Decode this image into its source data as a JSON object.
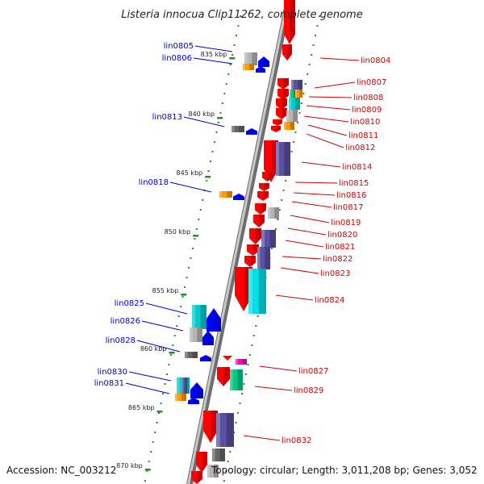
{
  "title": "Listeria innocua Clip11262, complete genome",
  "footer": {
    "accession": "Accession: NC_003212",
    "summary": "Topology: circular; Length: 3,011,208 bp; Genes: 3,052"
  },
  "colors": {
    "backbone": "#8c8c8c",
    "tick": "#228b22",
    "plus_label": "#d00000",
    "minus_label": "#0000cc",
    "forward_gene": "#ff0000",
    "reverse_gene": "#0000ff",
    "cog_orange": "#ff9900",
    "cog_cyan": "#00cccc",
    "cog_gray": "#b4b4b4",
    "cog_darkgray": "#666666",
    "cog_purple": "#5a4fa0",
    "cog_green": "#00cc88",
    "cog_magenta": "#ff00cc",
    "cog_bright_cyan": "#00e0e8"
  },
  "kbp_labels": [
    "835 kbp",
    "840 kbp",
    "845 kbp",
    "850 kbp",
    "855 kbp",
    "860 kbp",
    "865 kbp",
    "870 kbp"
  ],
  "plus_genes": [
    "lin0804",
    "lin0807",
    "lin0808",
    "lin0809",
    "lin0810",
    "lin0811",
    "lin0812",
    "lin0814",
    "lin0815",
    "lin0816",
    "lin0817",
    "lin0819",
    "lin0820",
    "lin0821",
    "lin0822",
    "lin0823",
    "lin0824",
    "lin0827",
    "lin0829",
    "lin0832"
  ],
  "minus_genes": [
    "lin0805",
    "lin0806",
    "lin0813",
    "lin0818",
    "lin0825",
    "lin0826",
    "lin0828",
    "lin0830",
    "lin0831"
  ]
}
